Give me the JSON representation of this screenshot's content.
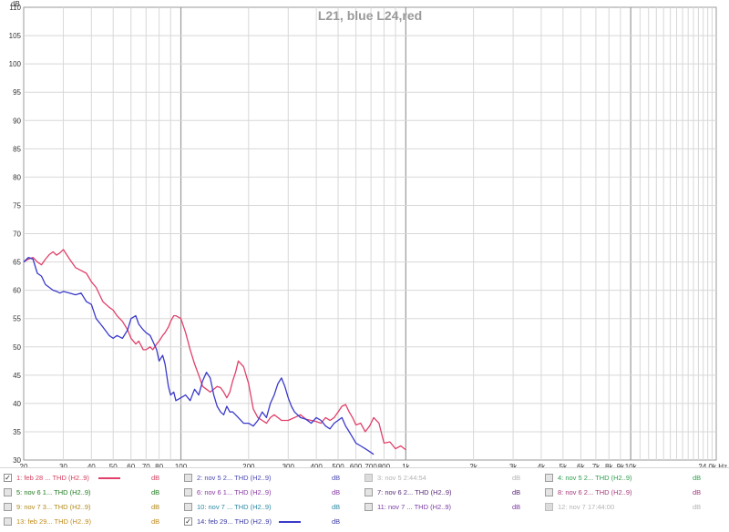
{
  "chart_data": {
    "type": "line",
    "title": "L21, blue L24,red",
    "ylabel": "dB",
    "xlabel": "",
    "x_scale": "log",
    "xlim": [
      20,
      24000
    ],
    "ylim": [
      30,
      110
    ],
    "grid": true,
    "y_ticks": [
      "110",
      "105",
      "100",
      "95",
      "90",
      "85",
      "80",
      "75",
      "70",
      "65",
      "60",
      "55",
      "50",
      "45",
      "40",
      "35",
      "30"
    ],
    "x_major_ticks": [
      "20",
      "30",
      "40",
      "50",
      "60",
      "70",
      "80",
      "100",
      "200",
      "300",
      "400",
      "500",
      "600",
      "700",
      "800",
      "1k",
      "2k",
      "3k",
      "4k",
      "5k",
      "6k",
      "7k",
      "8k",
      "9k",
      "10k"
    ],
    "x_end_label": "24,0k Hz",
    "series": [
      {
        "name": "1: feb 28 ... THD (H2..9)",
        "color": "#e0406a",
        "x": [
          20,
          21,
          22,
          23,
          24,
          25,
          26,
          27,
          28,
          29,
          30,
          32,
          34,
          36,
          38,
          40,
          42,
          45,
          48,
          50,
          52,
          55,
          58,
          60,
          63,
          65,
          68,
          70,
          73,
          75,
          78,
          80,
          83,
          85,
          88,
          90,
          93,
          95,
          100,
          105,
          110,
          115,
          120,
          125,
          130,
          135,
          140,
          145,
          150,
          155,
          160,
          165,
          170,
          175,
          180,
          190,
          200,
          210,
          220,
          230,
          240,
          250,
          260,
          270,
          280,
          300,
          320,
          340,
          360,
          380,
          400,
          420,
          440,
          460,
          480,
          500,
          520,
          540,
          560,
          580,
          600,
          630,
          660,
          690,
          720,
          760,
          800,
          850,
          900,
          950,
          1000
        ],
        "y": [
          65.0,
          65.5,
          65.8,
          65.0,
          64.5,
          65.5,
          66.3,
          66.8,
          66.2,
          66.6,
          67.2,
          65.5,
          64.0,
          63.5,
          63.0,
          61.5,
          60.5,
          58.0,
          57.0,
          56.5,
          55.5,
          54.5,
          53.0,
          51.5,
          50.5,
          51.0,
          49.5,
          49.5,
          50.0,
          49.5,
          50.5,
          51.0,
          52.0,
          52.5,
          53.5,
          54.5,
          55.5,
          55.5,
          55.0,
          52.5,
          49.5,
          47.0,
          45.0,
          43.0,
          42.5,
          42.0,
          42.5,
          43.0,
          42.8,
          42.0,
          41.0,
          42.0,
          44.0,
          45.5,
          47.5,
          46.5,
          43.5,
          39.0,
          37.5,
          37.0,
          36.5,
          37.5,
          38.0,
          37.5,
          37.0,
          37.0,
          37.5,
          38.0,
          37.2,
          37.0,
          36.8,
          36.5,
          37.5,
          37.0,
          37.5,
          38.5,
          39.5,
          39.8,
          38.5,
          37.5,
          36.2,
          36.5,
          35.0,
          36.0,
          37.5,
          36.5,
          33.0,
          33.2,
          32.0,
          32.5,
          31.8
        ]
      },
      {
        "name": "14: feb 29... THD (H2..9)",
        "color": "#3a3acb",
        "x": [
          20,
          21,
          22,
          23,
          24,
          25,
          26,
          27,
          28,
          29,
          30,
          32,
          34,
          36,
          38,
          40,
          42,
          45,
          48,
          50,
          52,
          55,
          58,
          60,
          63,
          65,
          68,
          70,
          73,
          75,
          78,
          80,
          83,
          85,
          88,
          90,
          93,
          95,
          100,
          105,
          110,
          115,
          120,
          125,
          130,
          135,
          140,
          145,
          150,
          155,
          160,
          165,
          170,
          175,
          180,
          190,
          200,
          210,
          220,
          230,
          240,
          250,
          260,
          270,
          280,
          290,
          300,
          310,
          320,
          340,
          360,
          380,
          400,
          420,
          440,
          460,
          480,
          500,
          520,
          540,
          560,
          580,
          600,
          630,
          660,
          690,
          720
        ],
        "y": [
          65.0,
          65.8,
          65.5,
          63.0,
          62.5,
          61.0,
          60.5,
          60.0,
          59.8,
          59.5,
          59.8,
          59.5,
          59.2,
          59.5,
          58.0,
          57.5,
          55.0,
          53.5,
          52.0,
          51.5,
          52.0,
          51.5,
          53.0,
          55.0,
          55.5,
          54.0,
          53.0,
          52.5,
          52.0,
          51.0,
          49.5,
          47.5,
          48.5,
          47.0,
          43.0,
          41.5,
          42.0,
          40.5,
          41.0,
          41.5,
          40.5,
          42.5,
          41.5,
          44.0,
          45.5,
          44.5,
          41.5,
          39.5,
          38.5,
          38.0,
          39.5,
          38.5,
          38.5,
          38.0,
          37.5,
          36.5,
          36.5,
          36.0,
          37.0,
          38.5,
          37.5,
          40.0,
          41.5,
          43.5,
          44.5,
          43.0,
          41.0,
          39.5,
          38.5,
          37.5,
          37.2,
          36.5,
          37.5,
          37.0,
          36.0,
          35.5,
          36.5,
          37.0,
          37.5,
          36.0,
          35.0,
          34.0,
          33.0,
          32.5,
          32.0,
          31.5,
          31.0
        ]
      }
    ]
  },
  "legend": [
    {
      "label": "1: feb 28 ... THD (H2..9)",
      "unit": "dB",
      "checked": true,
      "swatch": "#e0406a",
      "color": "#d43f5e"
    },
    {
      "label": "2: nov 5 2... THD (H2..9)",
      "unit": "dB",
      "checked": false,
      "color": "#4a4ab5"
    },
    {
      "label": "3: nov 5 2:44:54",
      "unit": "dB",
      "checked": false,
      "inactive": true,
      "color": "#b4b4b4"
    },
    {
      "label": "4: nov 5 2... THD (H2..9)",
      "unit": "dB",
      "checked": false,
      "color": "#2f9e4f"
    },
    {
      "label": "5: nov 6 1... THD (H2..9)",
      "unit": "dB",
      "checked": false,
      "color": "#1f7a1f"
    },
    {
      "label": "6: nov 6 1... THD (H2..9)",
      "unit": "dB",
      "checked": false,
      "color": "#8a3aa4"
    },
    {
      "label": "7: nov 6 2... THD (H2..9)",
      "unit": "dB",
      "checked": false,
      "color": "#5a2a7a"
    },
    {
      "label": "8: nov 6 2... THD (H2..9)",
      "unit": "dB",
      "checked": false,
      "color": "#a43a7a"
    },
    {
      "label": "9: nov 7 3... THD (H2..9)",
      "unit": "dB",
      "checked": false,
      "color": "#b08a1a"
    },
    {
      "label": "10: nov 7 ... THD (H2..9)",
      "unit": "dB",
      "checked": false,
      "color": "#2a8aa4"
    },
    {
      "label": "11: nov 7 ... THD (H2..9)",
      "unit": "dB",
      "checked": false,
      "color": "#7a3aa4"
    },
    {
      "label": "12: nov 7 17:44:00",
      "unit": "dB",
      "checked": false,
      "inactive": true,
      "color": "#b4b4b4"
    },
    {
      "label": "13: feb 29... THD (H2..9)",
      "unit": "dB",
      "checked": false,
      "color": "#c08a1a"
    },
    {
      "label": "14: feb 29... THD (H2..9)",
      "unit": "dB",
      "checked": true,
      "swatch": "#3a3acb",
      "color": "#3a3aa4"
    }
  ]
}
